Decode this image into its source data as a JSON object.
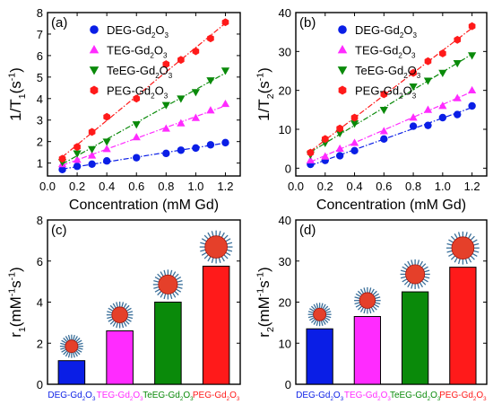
{
  "colors": {
    "DEG": "#0a1ee6",
    "TEG": "#ff2bff",
    "TeEG": "#0a8a0a",
    "PEG": "#ff1a1a"
  },
  "chart_data": [
    {
      "panel_label": "(a)",
      "type": "scatter",
      "xlabel": "Concentration (mM Gd)",
      "ylabel_main": "1/T",
      "ylabel_sub": "1",
      "ylabel_open": "(s",
      "ylabel_sup": "-1",
      "ylabel_close": ")",
      "xlim": [
        0,
        1.3
      ],
      "ylim": [
        0.4,
        8
      ],
      "xticks": [
        0.0,
        0.2,
        0.4,
        0.6,
        0.8,
        1.0,
        1.2
      ],
      "xtick_labels": [
        "0.0",
        "0.2",
        "0.4",
        "0.6",
        "0.8",
        "1.0",
        "1.2"
      ],
      "yticks": [
        1,
        2,
        3,
        4,
        5,
        6,
        7,
        8
      ],
      "ytick_labels": [
        "1",
        "2",
        "3",
        "4",
        "5",
        "6",
        "7",
        "8"
      ],
      "legend_position": "top-left",
      "x": [
        0.1,
        0.2,
        0.3,
        0.4,
        0.6,
        0.8,
        0.9,
        1.0,
        1.1,
        1.2
      ],
      "series": [
        {
          "name": "DEG-Gd2O3",
          "key": "DEG",
          "marker": "circle",
          "values": [
            0.7,
            0.85,
            0.95,
            1.1,
            1.25,
            1.45,
            1.6,
            1.7,
            1.85,
            1.95
          ]
        },
        {
          "name": "TEG-Gd2O3",
          "key": "TEG",
          "marker": "triangle-up",
          "values": [
            0.95,
            1.15,
            1.35,
            1.65,
            2.2,
            2.6,
            2.85,
            3.1,
            3.45,
            3.75
          ]
        },
        {
          "name": "TeEG-Gd2O3",
          "key": "TeEG",
          "marker": "triangle-down",
          "values": [
            1.05,
            1.45,
            1.65,
            2.0,
            2.8,
            3.7,
            4.0,
            4.3,
            4.85,
            5.3
          ]
        },
        {
          "name": "PEG-Gd2O3",
          "key": "PEG",
          "marker": "hexagon",
          "values": [
            1.2,
            1.75,
            2.45,
            3.15,
            4.0,
            5.6,
            5.8,
            6.2,
            6.8,
            7.55
          ]
        }
      ]
    },
    {
      "panel_label": "(b)",
      "type": "scatter",
      "xlabel": "Concentration (mM Gd)",
      "ylabel_main": "1/T",
      "ylabel_sub": "2",
      "ylabel_open": "(s",
      "ylabel_sup": "-1",
      "ylabel_close": ")",
      "xlim": [
        0,
        1.3
      ],
      "ylim": [
        -2,
        40
      ],
      "xticks": [
        0.0,
        0.2,
        0.4,
        0.6,
        0.8,
        1.0,
        1.2
      ],
      "xtick_labels": [
        "0.0",
        "0.2",
        "0.4",
        "0.6",
        "0.8",
        "1.0",
        "1.2"
      ],
      "yticks": [
        0,
        10,
        20,
        30,
        40
      ],
      "ytick_labels": [
        "0",
        "10",
        "20",
        "30",
        "40"
      ],
      "legend_position": "top-left",
      "x": [
        0.1,
        0.2,
        0.3,
        0.4,
        0.6,
        0.8,
        0.9,
        1.0,
        1.1,
        1.2
      ],
      "series": [
        {
          "name": "DEG-Gd2O3",
          "key": "DEG",
          "marker": "circle",
          "values": [
            1.0,
            2.0,
            3.2,
            4.5,
            7.5,
            10.8,
            11.0,
            13.0,
            13.8,
            16.0
          ]
        },
        {
          "name": "TEG-Gd2O3",
          "key": "TEG",
          "marker": "triangle-up",
          "values": [
            2.0,
            3.0,
            5.0,
            6.5,
            9.5,
            13.0,
            15.0,
            16.0,
            18.0,
            20.0
          ]
        },
        {
          "name": "TeEG-Gd2O3",
          "key": "TeEG",
          "marker": "triangle-down",
          "values": [
            3.5,
            6.5,
            9.0,
            11.5,
            15.0,
            21.0,
            22.5,
            24.5,
            27.0,
            29.0
          ]
        },
        {
          "name": "PEG-Gd2O3",
          "key": "PEG",
          "marker": "hexagon",
          "values": [
            4.0,
            7.5,
            10.2,
            13.0,
            19.0,
            24.5,
            27.5,
            29.5,
            33.0,
            36.5
          ]
        }
      ]
    },
    {
      "panel_label": "(c)",
      "type": "bar",
      "ylabel_main": "r",
      "ylabel_sub": "1",
      "ylabel_open": "(mM",
      "ylabel_sup": "-1",
      "ylabel_mid": "s",
      "ylabel_sup2": "-1",
      "ylabel_close": ")",
      "ylim": [
        0,
        8
      ],
      "yticks": [
        0,
        2,
        4,
        6,
        8
      ],
      "ytick_labels": [
        "0",
        "2",
        "4",
        "6",
        "8"
      ],
      "categories": [
        "DEG-Gd2O3",
        "TEG-Gd2O3",
        "TeEG-Gd2O3",
        "PEG-Gd2O3"
      ],
      "category_keys": [
        "DEG",
        "TEG",
        "TeEG",
        "PEG"
      ],
      "values": [
        1.15,
        2.6,
        4.0,
        5.75
      ]
    },
    {
      "panel_label": "(d)",
      "type": "bar",
      "ylabel_main": "r",
      "ylabel_sub": "2",
      "ylabel_open": "(mM",
      "ylabel_sup": "-1",
      "ylabel_mid": "s",
      "ylabel_sup2": "-1",
      "ylabel_close": ")",
      "ylim": [
        0,
        40
      ],
      "yticks": [
        0,
        10,
        20,
        30,
        40
      ],
      "ytick_labels": [
        "0",
        "10",
        "20",
        "30",
        "40"
      ],
      "categories": [
        "DEG-Gd2O3",
        "TEG-Gd2O3",
        "TeEG-Gd2O3",
        "PEG-Gd2O3"
      ],
      "category_keys": [
        "DEG",
        "TEG",
        "TeEG",
        "PEG"
      ],
      "values": [
        13.5,
        16.5,
        22.5,
        28.5
      ]
    }
  ]
}
